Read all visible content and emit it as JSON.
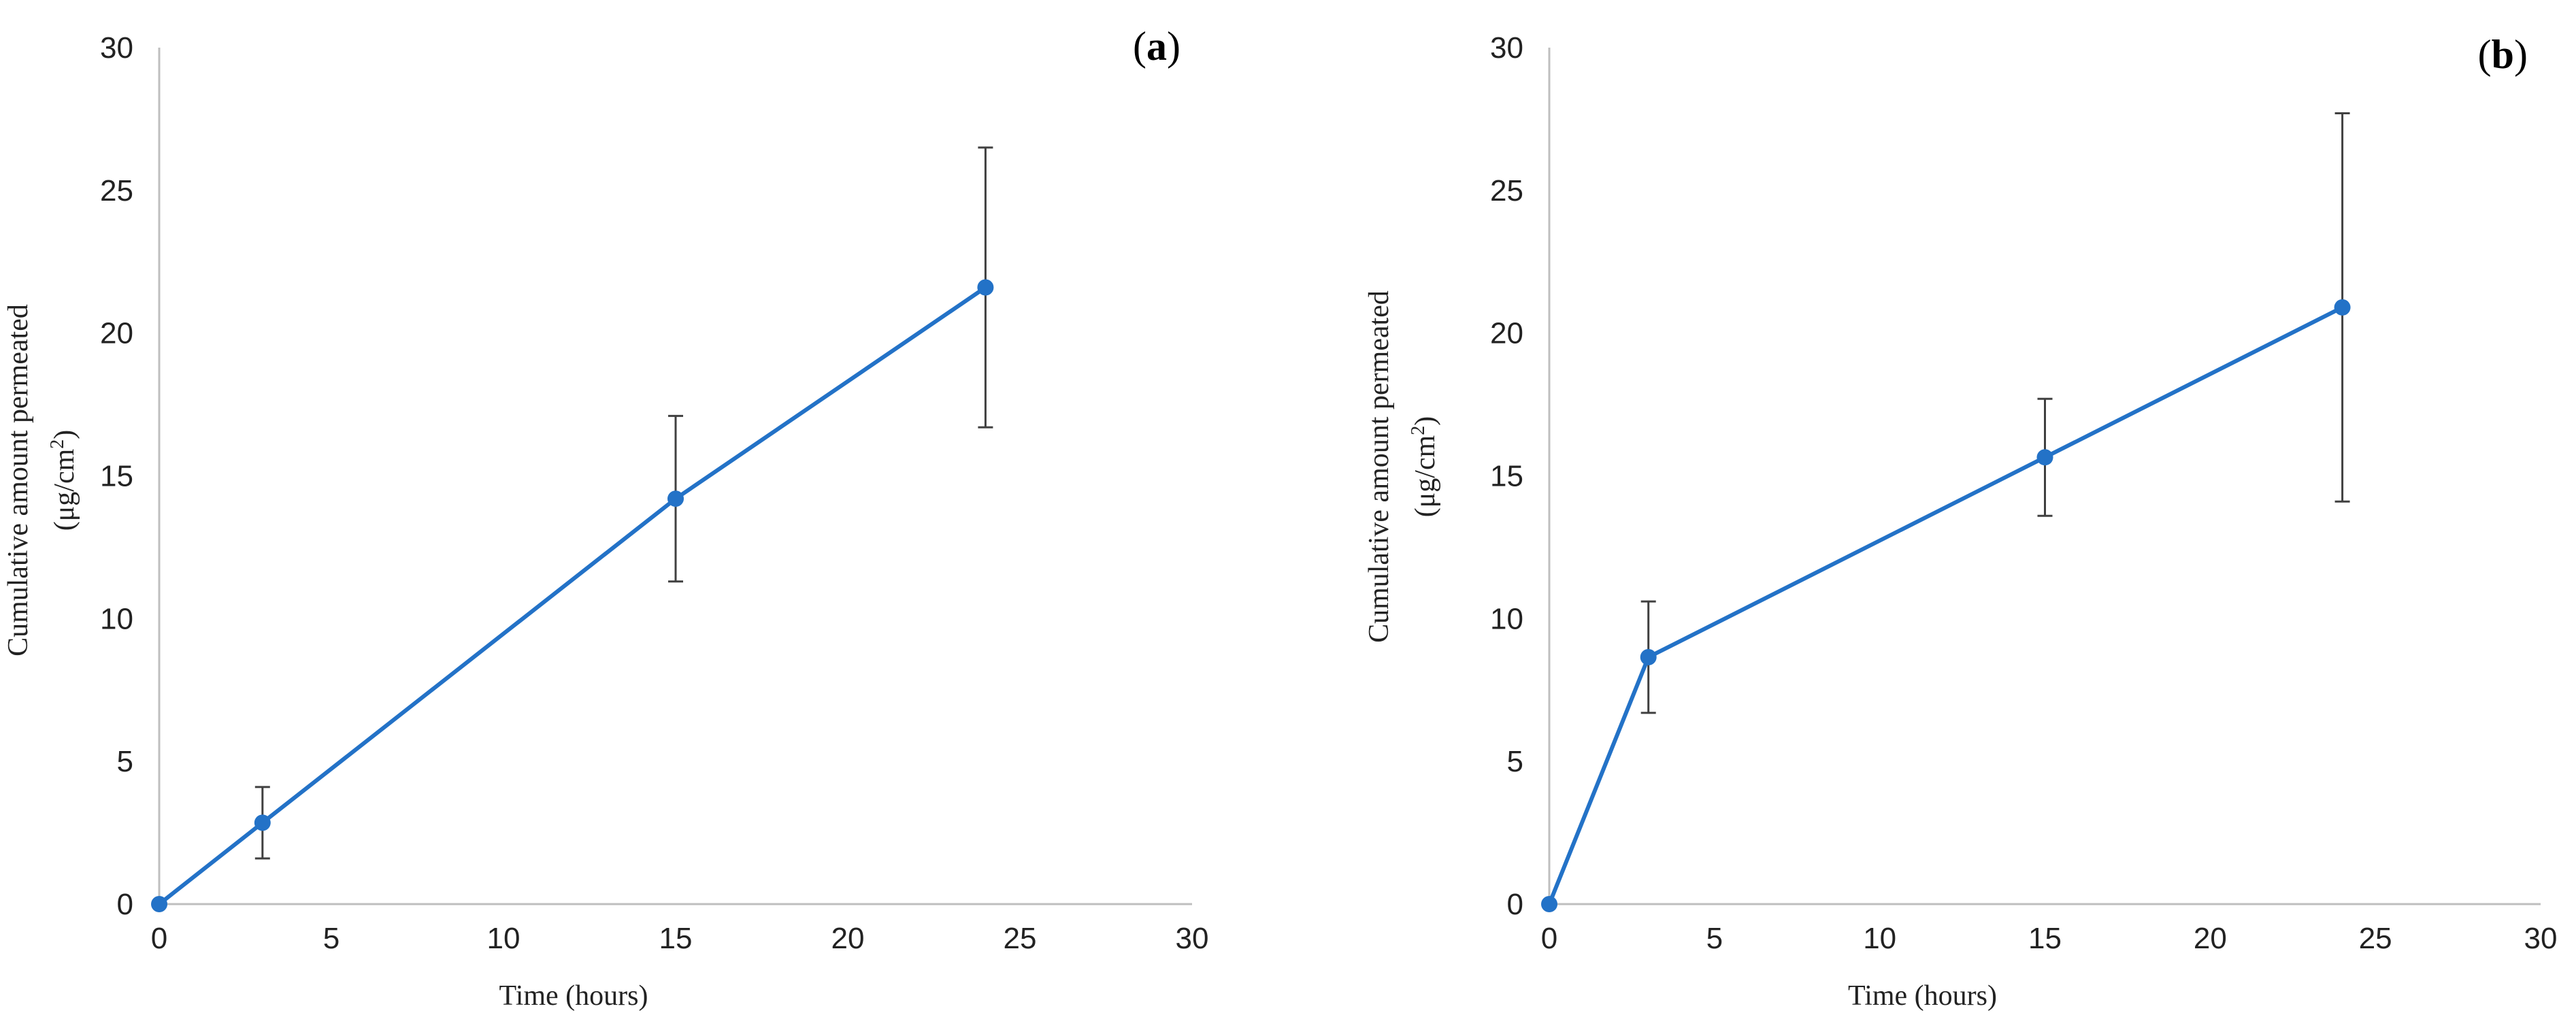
{
  "chart_data": [
    {
      "type": "line",
      "panel_label": "a",
      "xlabel": "Time (hours)",
      "ylabel_line1": "Cumulative amount permeated",
      "ylabel_line2_pre": "(μg/cm",
      "ylabel_line2_sup": "2",
      "ylabel_line2_post": ")",
      "xlim": [
        0,
        30
      ],
      "ylim": [
        0,
        30
      ],
      "xticks": [
        0,
        5,
        10,
        15,
        20,
        25,
        30
      ],
      "yticks": [
        0,
        5,
        10,
        15,
        20,
        25,
        30
      ],
      "grid": false,
      "line_color": "#2372C7",
      "error_color": "#404040",
      "series": [
        {
          "x": [
            0,
            3,
            15,
            24
          ],
          "y": [
            0,
            2.85,
            14.2,
            21.6
          ],
          "error": [
            0,
            1.25,
            2.9,
            4.9
          ]
        }
      ]
    },
    {
      "type": "line",
      "panel_label": "b",
      "xlabel": "Time (hours)",
      "ylabel_line1": "Cumulative amount permeated",
      "ylabel_line2_pre": "(μg/cm",
      "ylabel_line2_sup": "2",
      "ylabel_line2_post": ")",
      "xlim": [
        0,
        30
      ],
      "ylim": [
        0,
        30
      ],
      "xticks": [
        0,
        5,
        10,
        15,
        20,
        25,
        30
      ],
      "yticks": [
        0,
        5,
        10,
        15,
        20,
        25,
        30
      ],
      "grid": false,
      "line_color": "#2372C7",
      "error_color": "#404040",
      "series": [
        {
          "x": [
            0,
            3,
            15,
            24
          ],
          "y": [
            0,
            8.65,
            15.65,
            20.9
          ],
          "error": [
            0,
            1.95,
            2.05,
            6.8
          ]
        }
      ]
    }
  ]
}
